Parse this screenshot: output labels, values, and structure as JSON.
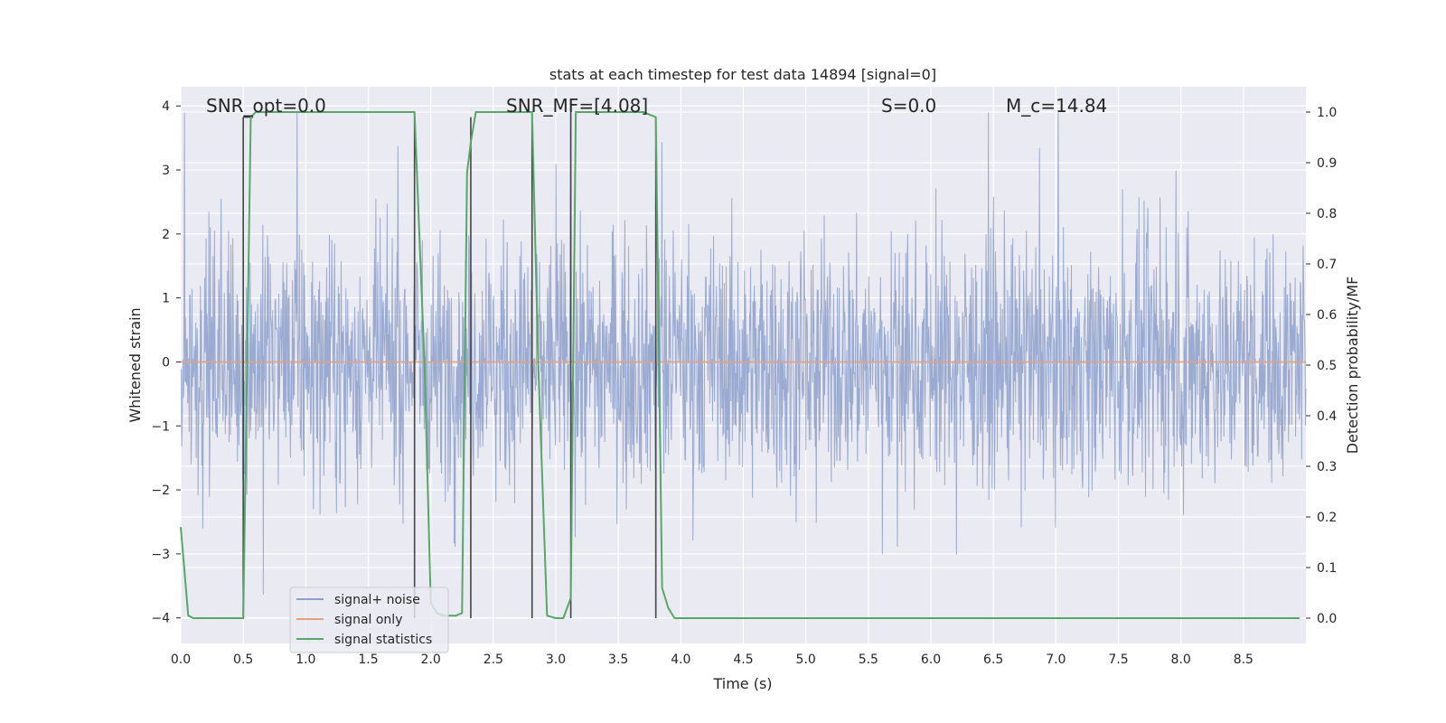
{
  "chart_data": {
    "type": "line",
    "title": "stats at each timestep for test data 14894 [signal=0]",
    "xlabel": "Time (s)",
    "ylabel_left": "Whitened strain",
    "ylabel_right": "Detection probability/MF",
    "xlim": [
      0,
      9.0
    ],
    "ylim_left": [
      -4.4,
      4.3
    ],
    "ylim_right": [
      -0.05,
      1.05
    ],
    "xticks": [
      "0.0",
      "0.5",
      "1.0",
      "1.5",
      "2.0",
      "2.5",
      "3.0",
      "3.5",
      "4.0",
      "4.5",
      "5.0",
      "5.5",
      "6.0",
      "6.5",
      "7.0",
      "7.5",
      "8.0",
      "8.5"
    ],
    "yticks_left": [
      "−4",
      "−3",
      "−2",
      "−1",
      "0",
      "1",
      "2",
      "3",
      "4"
    ],
    "yticks_right": [
      "0.0",
      "0.1",
      "0.2",
      "0.3",
      "0.4",
      "0.5",
      "0.6",
      "0.7",
      "0.8",
      "0.9",
      "1.0"
    ],
    "grid": true,
    "legend_position": "lower-left",
    "annotations": {
      "snr_opt": "SNR_opt=0.0",
      "snr_mf": "SNR_MF=[4.08]",
      "s": "S=0.0",
      "mc": "M_c=14.84"
    },
    "series": [
      {
        "name": "signal+ noise",
        "color": "#8c9fcb",
        "axis": "left",
        "description_values": {
          "typical_range": [
            -1.6,
            1.6
          ],
          "peak_range": [
            -3.8,
            3.9
          ]
        }
      },
      {
        "name": "signal only",
        "color": "#e8a07c",
        "axis": "left",
        "x": [
          0,
          9.0
        ],
        "y": [
          0,
          0
        ]
      },
      {
        "name": "signal statistics",
        "color": "#55a868",
        "axis": "right",
        "x": [
          0.0,
          0.06,
          0.1,
          0.15,
          0.25,
          0.35,
          0.45,
          0.5,
          0.56,
          0.6,
          0.7,
          0.8,
          1.0,
          1.2,
          1.4,
          1.6,
          1.8,
          1.87,
          1.95,
          2.0,
          2.05,
          2.1,
          2.15,
          2.2,
          2.25,
          2.29,
          2.32,
          2.36,
          2.45,
          2.6,
          2.75,
          2.81,
          2.86,
          2.93,
          3.0,
          3.06,
          3.12,
          3.16,
          3.2,
          3.3,
          3.5,
          3.7,
          3.8,
          3.85,
          3.9,
          3.95,
          4.0,
          4.5,
          5.0,
          6.0,
          7.0,
          8.0,
          8.95
        ],
        "y": [
          0.18,
          0.005,
          0.0,
          0.0,
          0.0,
          0.0,
          0.0,
          0.0,
          0.99,
          1.0,
          1.0,
          1.0,
          1.0,
          1.0,
          1.0,
          1.0,
          1.0,
          1.0,
          0.5,
          0.03,
          0.01,
          0.005,
          0.005,
          0.005,
          0.01,
          0.88,
          0.94,
          1.0,
          1.0,
          1.0,
          1.0,
          1.0,
          0.5,
          0.005,
          0.0,
          0.0,
          0.04,
          1.0,
          1.0,
          1.0,
          1.0,
          1.0,
          0.99,
          0.06,
          0.02,
          0.0,
          0.0,
          0.0,
          0.0,
          0.0,
          0.0,
          0.0,
          0.0
        ]
      }
    ],
    "vertical_markers": [
      {
        "x": 0.5,
        "y_top": 0.99,
        "color": "#444444"
      },
      {
        "x": 1.87,
        "y_top": 1.0,
        "color": "#444444"
      },
      {
        "x": 2.32,
        "y_top": 0.99,
        "color": "#444444"
      },
      {
        "x": 2.81,
        "y_top": 1.0,
        "color": "#444444"
      },
      {
        "x": 3.12,
        "y_top": 1.0,
        "color": "#444444"
      },
      {
        "x": 3.8,
        "y_top": 0.99,
        "color": "#444444"
      }
    ]
  }
}
